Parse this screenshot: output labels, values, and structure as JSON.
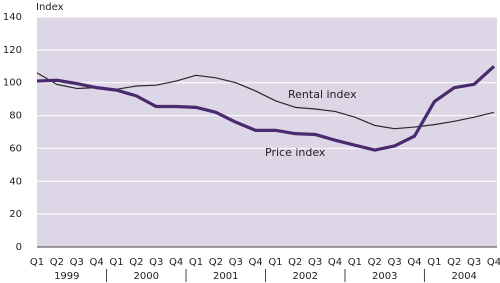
{
  "chart_data": {
    "type": "line",
    "y_label": "Index",
    "categories": [
      "Q1",
      "Q2",
      "Q3",
      "Q4",
      "Q1",
      "Q2",
      "Q3",
      "Q4",
      "Q1",
      "Q2",
      "Q3",
      "Q4",
      "Q1",
      "Q2",
      "Q3",
      "Q4",
      "Q1",
      "Q2",
      "Q3",
      "Q4",
      "Q1",
      "Q2",
      "Q3",
      "Q4"
    ],
    "groups": [
      "1999",
      "2000",
      "2001",
      "2002",
      "2003",
      "2004"
    ],
    "series": [
      {
        "name": "Rental index",
        "color": "#2a2a2a",
        "width": 1.2,
        "values": [
          106,
          99,
          96.5,
          97,
          96,
          98,
          98.5,
          101,
          104.5,
          103,
          100,
          95,
          89,
          85,
          84,
          82.5,
          79,
          74,
          72,
          73,
          74.5,
          76.5,
          79,
          82
        ]
      },
      {
        "name": "Price index",
        "color": "#4a2a6e",
        "width": 3.2,
        "values": [
          101,
          101.5,
          99.5,
          97,
          95.5,
          92,
          85.5,
          85.5,
          85,
          82,
          76,
          71,
          71,
          69,
          68.5,
          65,
          62,
          59,
          61.5,
          67.5,
          88.5,
          97,
          99,
          110
        ]
      }
    ],
    "ylim": [
      0,
      140
    ],
    "yticks": [
      0,
      20,
      40,
      60,
      80,
      100,
      120,
      140
    ],
    "grid": true,
    "plot_background": "#dcd6e6"
  }
}
